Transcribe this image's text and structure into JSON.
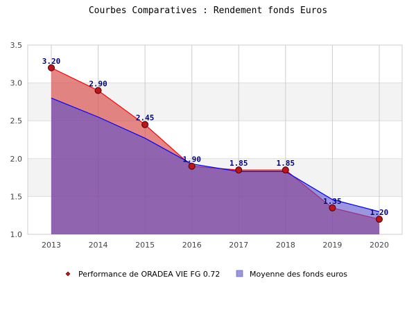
{
  "chart_data": {
    "type": "area",
    "title": "Courbes Comparatives : Rendement fonds Euros",
    "categories": [
      "2013",
      "2014",
      "2015",
      "2016",
      "2017",
      "2018",
      "2019",
      "2020"
    ],
    "ylim": [
      1.0,
      3.5
    ],
    "yticks": [
      "1.0",
      "1.5",
      "2.0",
      "2.5",
      "3.0",
      "3.5"
    ],
    "grid": true,
    "legend_position": "bottom",
    "series": [
      {
        "name": "Performance de ORADEA VIE FG 0.72",
        "values": [
          3.2,
          2.9,
          2.45,
          1.9,
          1.85,
          1.85,
          1.35,
          1.2
        ],
        "labels": [
          "3.20",
          "2.90",
          "2.45",
          "1.90",
          "1.85",
          "1.85",
          "1.35",
          "1.20"
        ],
        "color": "#ff0000",
        "fill": "#d9534f"
      },
      {
        "name": "Moyenne des fonds euros",
        "values": [
          2.8,
          2.55,
          2.27,
          1.93,
          1.83,
          1.83,
          1.46,
          1.3
        ],
        "color": "#0000ff",
        "fill": "#5a4fcf"
      }
    ]
  }
}
